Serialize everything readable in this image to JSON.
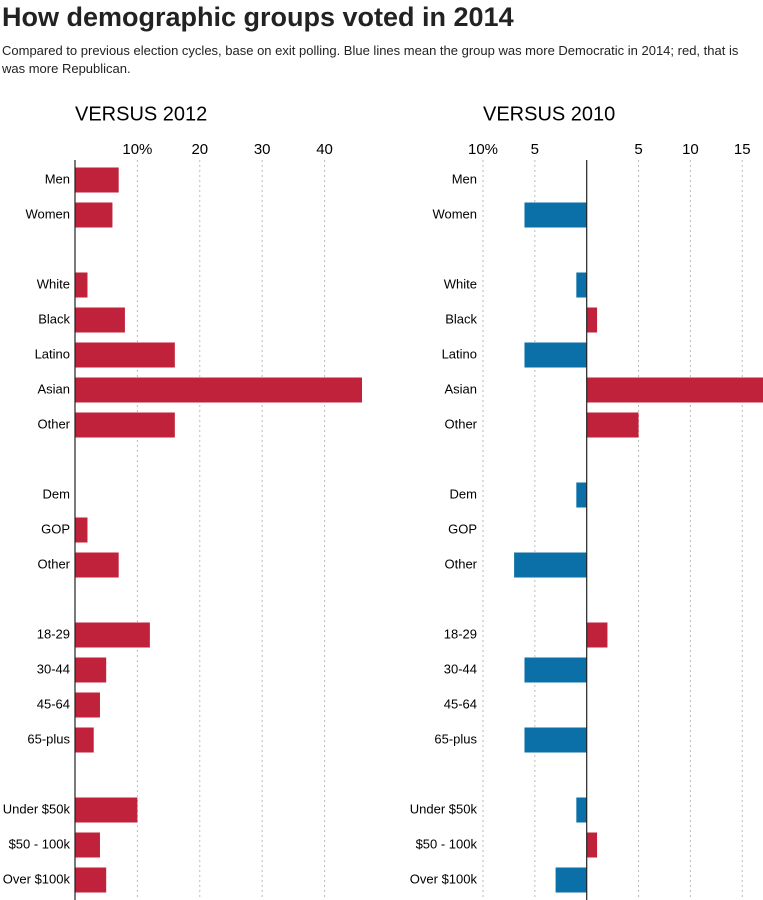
{
  "title": "How demographic groups voted in 2014",
  "subtitle": "Compared to previous election cycles, base on exit polling. Blue lines mean the group was more Democratic in 2014; red, that is was more Republican.",
  "chart_data": [
    {
      "type": "bar",
      "orientation": "horizontal",
      "title": "VERSUS 2012",
      "categories": [
        "Men",
        "Women",
        null,
        "White",
        "Black",
        "Latino",
        "Asian",
        "Other",
        null,
        "Dem",
        "GOP",
        "Other",
        null,
        "18-29",
        "30-44",
        "45-64",
        "65-plus",
        null,
        "Under $50k",
        "$50 - 100k",
        "Over $100k"
      ],
      "values": [
        7,
        6,
        null,
        2,
        8,
        16,
        46,
        16,
        null,
        0,
        2,
        7,
        null,
        12,
        5,
        4,
        3,
        null,
        10,
        4,
        5
      ],
      "xlim": [
        0,
        46
      ],
      "xticks": [
        {
          "value": 10,
          "label": "10%"
        },
        20,
        30,
        40
      ],
      "positive_color": "#c0213b",
      "negative_color": "#0b6fa8",
      "grid": true
    },
    {
      "type": "bar",
      "orientation": "horizontal",
      "title": "VERSUS 2010",
      "categories": [
        "Men",
        "Women",
        null,
        "White",
        "Black",
        "Latino",
        "Asian",
        "Other",
        null,
        "Dem",
        "GOP",
        "Other",
        null,
        "18-29",
        "30-44",
        "45-64",
        "65-plus",
        null,
        "Under $50k",
        "$50 - 100k",
        "Over $100k"
      ],
      "values": [
        0,
        -6,
        null,
        -1,
        1,
        -6,
        17,
        5,
        null,
        -1,
        0,
        -7,
        null,
        2,
        -6,
        0,
        -6,
        null,
        -1,
        1,
        -3
      ],
      "xlim": [
        -10,
        17
      ],
      "xticks": [
        {
          "value": -10,
          "label": "10%"
        },
        {
          "value": -5,
          "label": "5"
        },
        5,
        10,
        15
      ],
      "positive_color": "#c0213b",
      "negative_color": "#0b6fa8",
      "grid": true
    }
  ]
}
